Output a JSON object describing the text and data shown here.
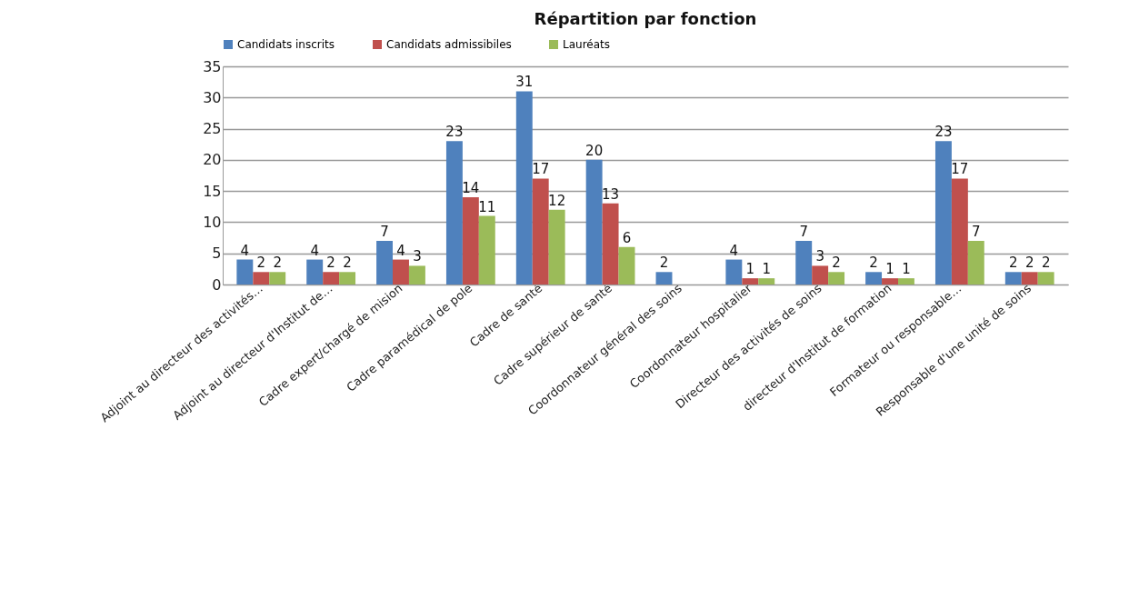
{
  "chart_data": {
    "type": "bar",
    "title": "Répartition par fonction",
    "categories": [
      "Adjoint au directeur des activités…",
      "Adjoint au directeur d'Institut de…",
      "Cadre expert/chargé de mision",
      "Cadre paramédical de pole",
      "Cadre de santé",
      "Cadre supérieur de santé",
      "Coordonnateur général des soins",
      "Coordonnateur hospitalier",
      "Directeur des activités de soins",
      "directeur d'Institut de formation",
      "Formateur ou responsable…",
      "Responsable d'une unité de soins"
    ],
    "series": [
      {
        "name": "Candidats inscrits",
        "color": "#4f81bd",
        "values": [
          4,
          4,
          7,
          23,
          31,
          20,
          2,
          4,
          7,
          2,
          23,
          2
        ]
      },
      {
        "name": "Candidats admissibiles",
        "color": "#c0504d",
        "values": [
          2,
          2,
          4,
          14,
          17,
          13,
          null,
          1,
          3,
          1,
          17,
          2
        ]
      },
      {
        "name": "Lauréats",
        "color": "#9bbb59",
        "values": [
          2,
          2,
          3,
          11,
          12,
          6,
          null,
          1,
          2,
          1,
          7,
          2
        ]
      }
    ],
    "ylim": [
      0,
      35
    ],
    "yticks": [
      0,
      5,
      10,
      15,
      20,
      25,
      30,
      35
    ],
    "grid": "y",
    "legend": "top",
    "data_labels": true
  }
}
